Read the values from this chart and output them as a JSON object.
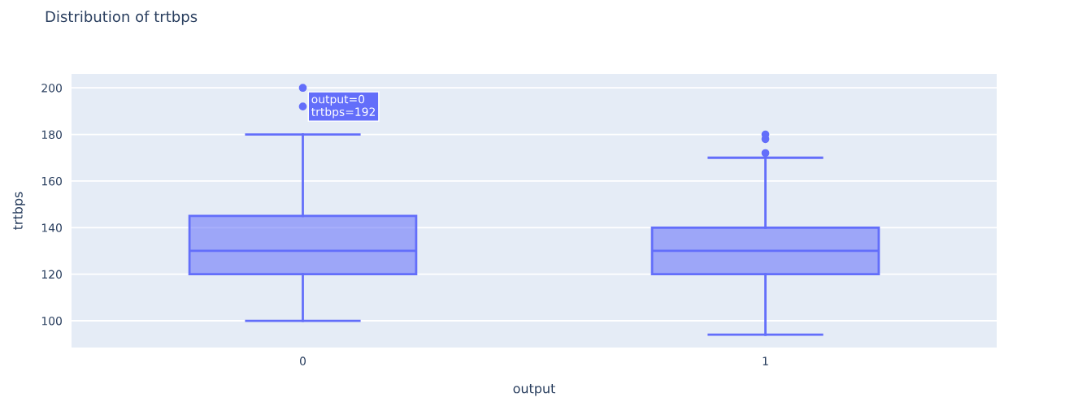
{
  "chart_data": {
    "type": "box",
    "title": "Distribution of trtbps",
    "xlabel": "output",
    "ylabel": "trtbps",
    "categories": [
      "0",
      "1"
    ],
    "color": "#636efa",
    "boxes": [
      {
        "low": 100,
        "q1": 120,
        "median": 130,
        "q3": 145,
        "high": 180,
        "outliers": [
          192,
          200
        ]
      },
      {
        "low": 94,
        "q1": 120,
        "median": 130,
        "q3": 140,
        "high": 170,
        "outliers": [
          172,
          178,
          180
        ]
      }
    ],
    "ylim": [
      88.5,
      206
    ],
    "yticks": [
      100,
      120,
      140,
      160,
      180,
      200
    ],
    "grid": "y",
    "annotations": [
      "output=0\ntrtbps=192"
    ]
  }
}
